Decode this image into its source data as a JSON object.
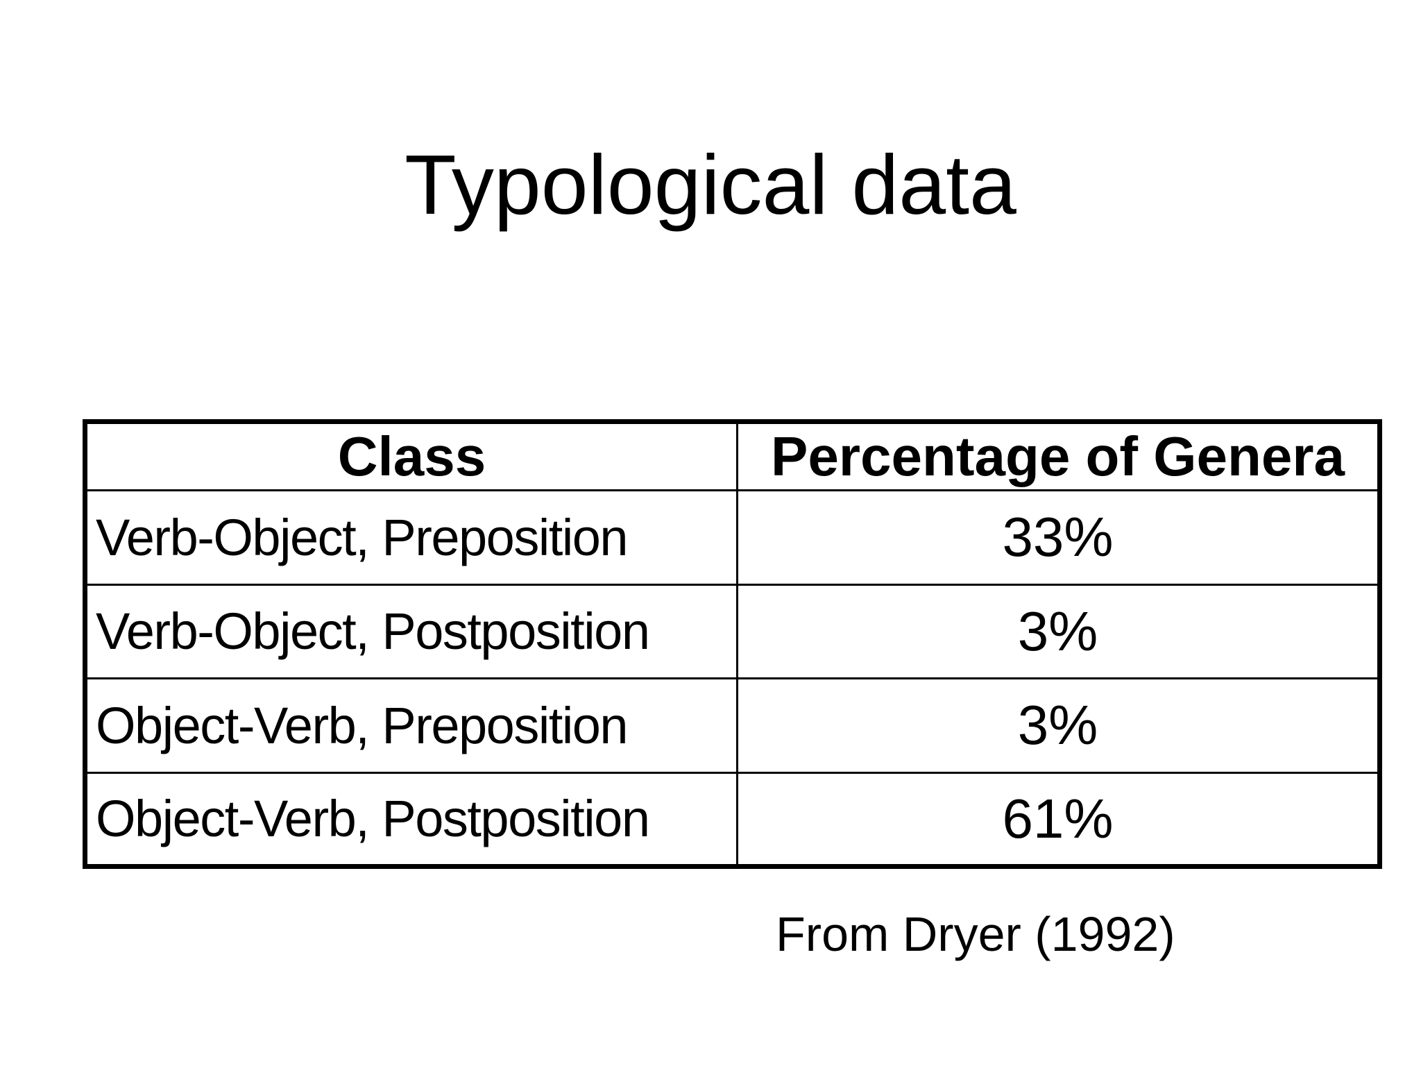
{
  "slide": {
    "title": "Typological data",
    "caption": "From Dryer (1992)",
    "background_color": "#ffffff",
    "text_color": "#000000",
    "border_color": "#000000"
  },
  "table": {
    "columns": [
      "Class",
      "Percentage of Genera"
    ],
    "rows": [
      {
        "class": "Verb-Object, Preposition",
        "percentage": "33%"
      },
      {
        "class": "Verb-Object, Postposition",
        "percentage": "3%"
      },
      {
        "class": "Object-Verb, Preposition",
        "percentage": "3%"
      },
      {
        "class": "Object-Verb, Postposition",
        "percentage": "61%"
      }
    ]
  },
  "chart_data": {
    "type": "table",
    "title": "Typological data",
    "categories": [
      "Verb-Object, Preposition",
      "Verb-Object, Postposition",
      "Object-Verb, Preposition",
      "Object-Verb, Postposition"
    ],
    "values": [
      33,
      3,
      3,
      61
    ],
    "value_unit": "%",
    "value_label": "Percentage of Genera",
    "source": "From Dryer (1992)"
  }
}
